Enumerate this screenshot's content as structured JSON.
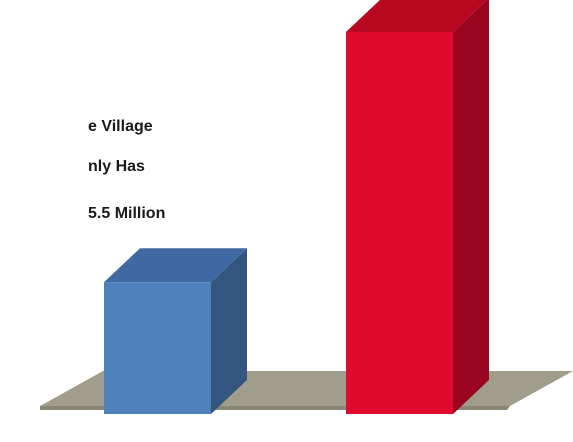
{
  "caption": {
    "lines": [
      "e Village",
      "nly Has",
      "5.5 Million"
    ]
  },
  "chart_data": {
    "type": "bar",
    "style": "3d",
    "categories": [
      "",
      ""
    ],
    "values": [
      0.345,
      1.0
    ],
    "value_unit": "relative height (fraction of tallest bar)",
    "colors": [
      "#4f81bd",
      "#e0092e"
    ],
    "side_colors": [
      "#34557f",
      "#9a0620"
    ],
    "top_colors": [
      "#3f6aa1",
      "#b8071f"
    ],
    "floor_color": "#a19d8d",
    "title": "",
    "xlabel": "",
    "ylabel": "",
    "grid": false,
    "legend": "none"
  }
}
